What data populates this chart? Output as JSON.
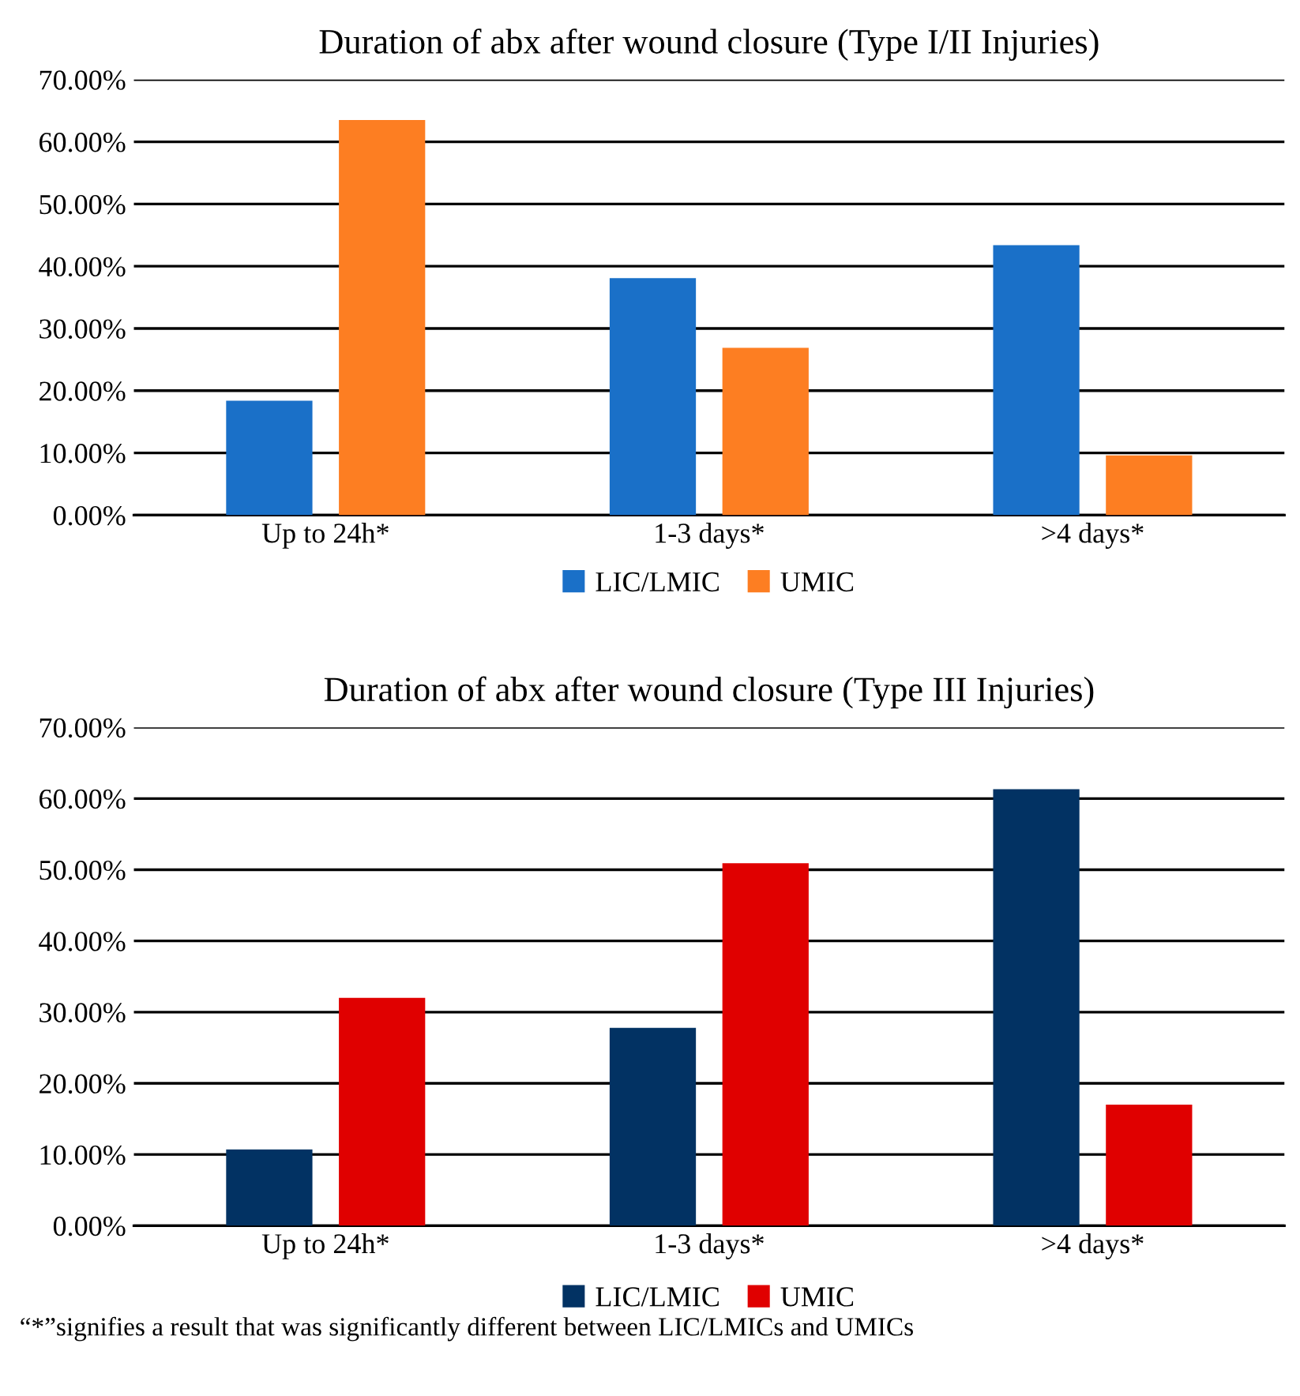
{
  "chart_data": [
    {
      "type": "bar",
      "title": "Duration of abx after wound closure (Type I/II Injuries)",
      "categories": [
        "Up to 24h*",
        "1-3 days*",
        ">4 days*"
      ],
      "series": [
        {
          "name": "LIC/LMIC",
          "color": "#1a70c8",
          "values": [
            18.4,
            38.1,
            43.4
          ]
        },
        {
          "name": "UMIC",
          "color": "#fd7e22",
          "values": [
            63.5,
            26.9,
            9.6
          ]
        }
      ],
      "ylim": [
        0,
        70
      ],
      "yticks": [
        {
          "value": 0,
          "label": "0.00%"
        },
        {
          "value": 10,
          "label": "10.00%"
        },
        {
          "value": 20,
          "label": "20.00%"
        },
        {
          "value": 30,
          "label": "30.00%"
        },
        {
          "value": 40,
          "label": "40.00%"
        },
        {
          "value": 50,
          "label": "50.00%"
        },
        {
          "value": 60,
          "label": "60.00%"
        },
        {
          "value": 70,
          "label": "70.00%"
        }
      ],
      "grid": "y",
      "legend": "bottom"
    },
    {
      "type": "bar",
      "title": "Duration of abx after wound closure (Type III Injuries)",
      "categories": [
        "Up to 24h*",
        "1-3 days*",
        ">4 days*"
      ],
      "series": [
        {
          "name": "LIC/LMIC",
          "color": "#023263",
          "values": [
            10.7,
            27.8,
            61.3
          ]
        },
        {
          "name": "UMIC",
          "color": "#e00000",
          "values": [
            32.0,
            50.9,
            17.0
          ]
        }
      ],
      "ylim": [
        0,
        70
      ],
      "yticks": [
        {
          "value": 0,
          "label": "0.00%"
        },
        {
          "value": 10,
          "label": "10.00%"
        },
        {
          "value": 20,
          "label": "20.00%"
        },
        {
          "value": 30,
          "label": "30.00%"
        },
        {
          "value": 40,
          "label": "40.00%"
        },
        {
          "value": 50,
          "label": "50.00%"
        },
        {
          "value": 60,
          "label": "60.00%"
        },
        {
          "value": 70,
          "label": "70.00%"
        }
      ],
      "grid": "y",
      "legend": "bottom",
      "annotations": [
        "“*”signifies a result that was significantly different between LIC/LMICs and UMICs"
      ]
    }
  ]
}
